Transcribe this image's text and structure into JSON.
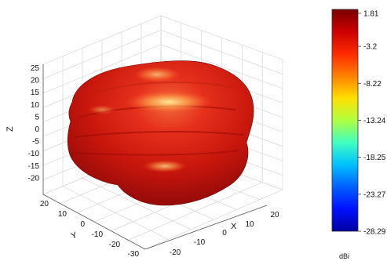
{
  "chart_data": {
    "type": "surface3d",
    "title": "",
    "axes": {
      "x": {
        "label": "X",
        "ticks": [
          "-20",
          "-10",
          "0",
          "10",
          "20"
        ]
      },
      "y": {
        "label": "Y",
        "ticks": [
          "-30",
          "-20",
          "-10",
          "0",
          "10",
          "20"
        ]
      },
      "z": {
        "label": "Z",
        "ticks": [
          "25",
          "20",
          "15",
          "10",
          "5",
          "0",
          "-5",
          "-10",
          "-15",
          "-20"
        ]
      }
    },
    "grid": true,
    "surface": {
      "description_colors": [
        "#8a0a0a",
        "#b8140c",
        "#e0281a",
        "#f05a28",
        "#ffd040"
      ]
    },
    "colorbar": {
      "unit": "dBi",
      "min": -28.29,
      "max": 1.81,
      "tick_labels": [
        "1.81",
        "-3.2",
        "-8.22",
        "-13.24",
        "-18.25",
        "-23.27",
        "-28.29"
      ],
      "colors": [
        "#7a0000",
        "#cc0000",
        "#ff2a00",
        "#ff8000",
        "#ffe000",
        "#b0ff40",
        "#40ffc0",
        "#00c0ff",
        "#0060ff",
        "#0010ff",
        "#0000a0"
      ]
    }
  }
}
